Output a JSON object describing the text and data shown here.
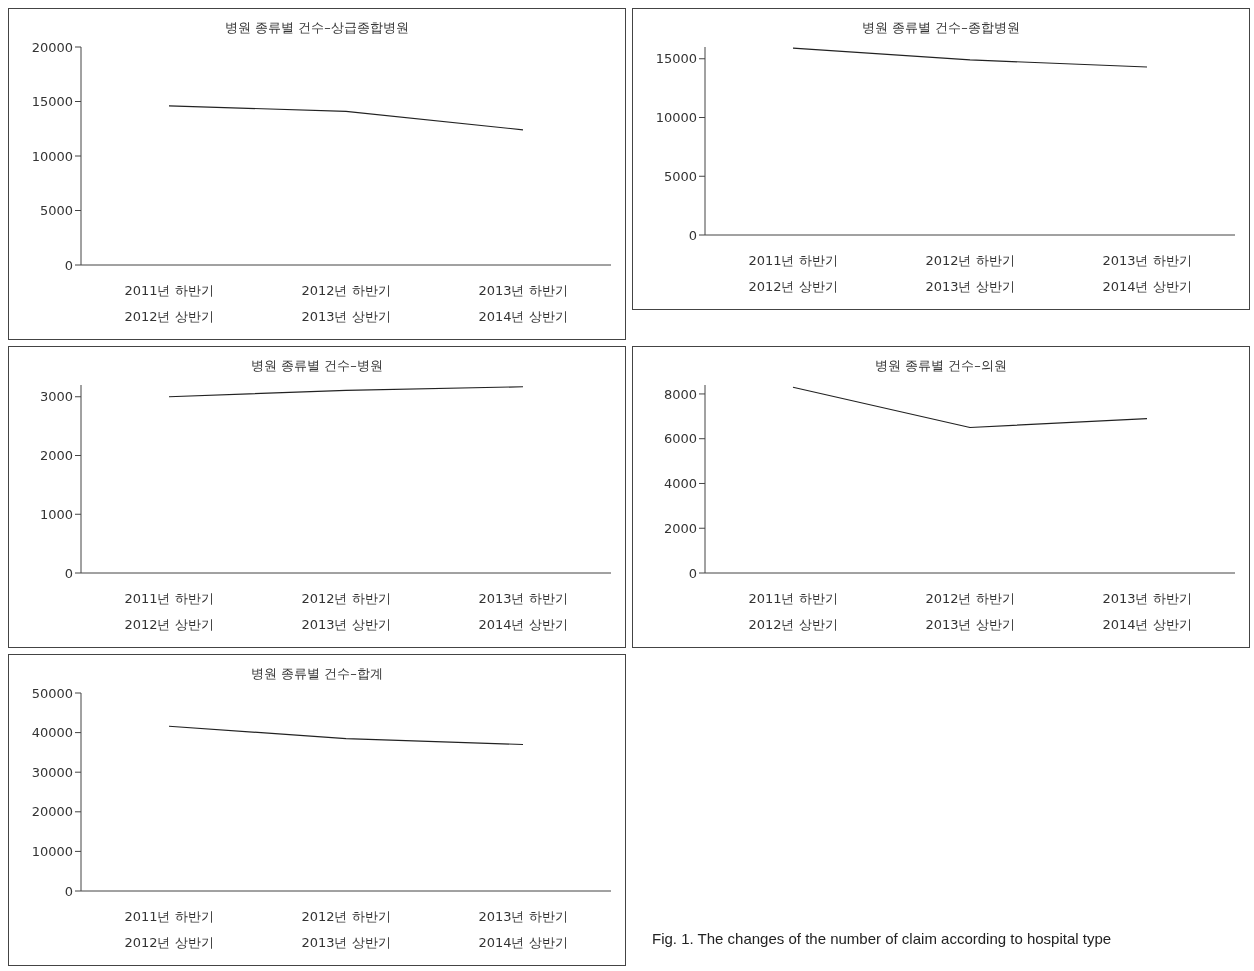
{
  "chart_data": [
    {
      "type": "line",
      "title": "병원 종류별 건수–상급종합병원",
      "categories": [
        "2011년 하반기\n2012년 상반기",
        "2012년 하반기\n2013년 상반기",
        "2013년 하반기\n2014년 상반기"
      ],
      "series": [
        {
          "color": "#222222",
          "values": [
            14600,
            14100,
            12400
          ]
        }
      ],
      "ylim": [
        0,
        20000
      ],
      "yticks": [
        0,
        5000,
        10000,
        15000,
        20000
      ],
      "grid": false,
      "legend": false,
      "marker": "none"
    },
    {
      "type": "line",
      "title": "병원 종류별 건수–종합병원",
      "categories": [
        "2011년 하반기\n2012년 상반기",
        "2012년 하반기\n2013년 상반기",
        "2013년 하반기\n2014년 상반기"
      ],
      "series": [
        {
          "color": "#222222",
          "values": [
            15900,
            14900,
            14300
          ]
        }
      ],
      "ylim": [
        0,
        16000
      ],
      "yticks": [
        0,
        5000,
        10000,
        15000
      ],
      "grid": false,
      "legend": false,
      "marker": "none"
    },
    {
      "type": "line",
      "title": "병원 종류별 건수–병원",
      "categories": [
        "2011년 하반기\n2012년 상반기",
        "2012년 하반기\n2013년 상반기",
        "2013년 하반기\n2014년 상반기"
      ],
      "series": [
        {
          "color": "#222222",
          "values": [
            3000,
            3110,
            3170
          ]
        }
      ],
      "ylim": [
        0,
        3200
      ],
      "yticks": [
        0,
        1000,
        2000,
        3000
      ],
      "grid": false,
      "legend": false,
      "marker": "none"
    },
    {
      "type": "line",
      "title": "병원 종류별 건수–의원",
      "categories": [
        "2011년 하반기\n2012년 상반기",
        "2012년 하반기\n2013년 상반기",
        "2013년 하반기\n2014년 상반기"
      ],
      "series": [
        {
          "color": "#222222",
          "values": [
            8300,
            6500,
            6900
          ]
        }
      ],
      "ylim": [
        0,
        8400
      ],
      "yticks": [
        0,
        2000,
        4000,
        6000,
        8000
      ],
      "grid": false,
      "legend": false,
      "marker": "none"
    },
    {
      "type": "line",
      "title": "병원 종류별 건수–합계",
      "categories": [
        "2011년 하반기\n2012년 상반기",
        "2012년 하반기\n2013년 상반기",
        "2013년 하반기\n2014년 상반기"
      ],
      "series": [
        {
          "color": "#222222",
          "values": [
            41600,
            38500,
            37000
          ]
        }
      ],
      "ylim": [
        0,
        50000
      ],
      "yticks": [
        0,
        10000,
        20000,
        30000,
        40000,
        50000
      ],
      "grid": false,
      "legend": false,
      "marker": "none",
      "annotations": [
        "Fig. 1. The changes of the number of claim according to hospital type"
      ]
    }
  ]
}
